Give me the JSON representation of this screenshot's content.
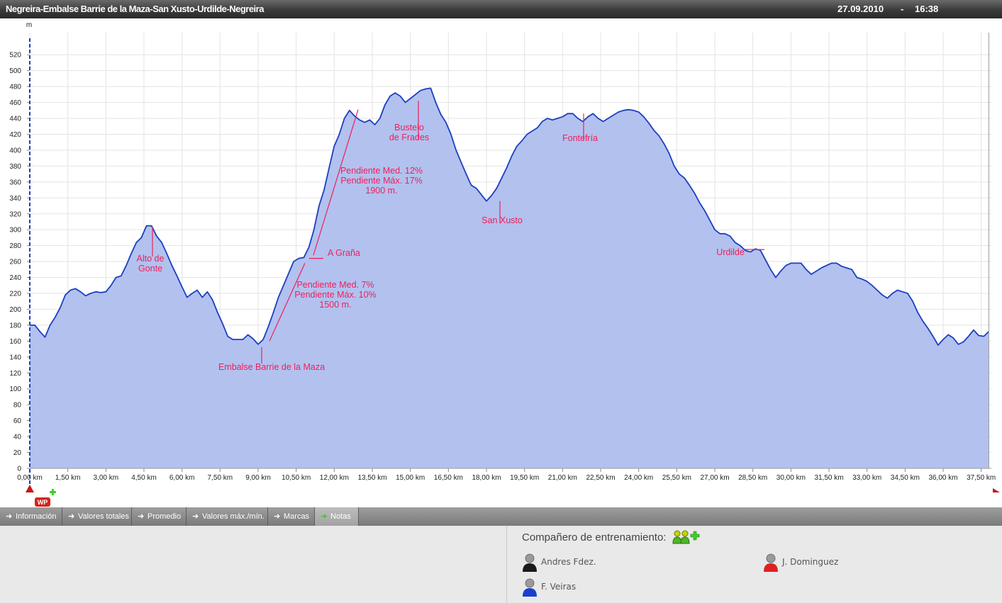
{
  "header": {
    "title": "Negreira-Embalse Barrie de la Maza-San Xusto-Urdilde-Negreira",
    "date": "27.09.2010",
    "separator": "-",
    "time": "16:38"
  },
  "chart_data": {
    "type": "area",
    "ylabel": "m",
    "xlabel": "",
    "xlim": [
      0,
      37.9
    ],
    "ylim": [
      0,
      530
    ],
    "yticks": [
      0,
      20,
      40,
      60,
      80,
      100,
      120,
      140,
      160,
      180,
      200,
      220,
      240,
      260,
      280,
      300,
      320,
      340,
      360,
      380,
      400,
      420,
      440,
      460,
      480,
      500,
      520
    ],
    "xticks": [
      0,
      1.5,
      3,
      4.5,
      6,
      7.5,
      9,
      10.5,
      12,
      13.5,
      15,
      16.5,
      18,
      19.5,
      21,
      22.5,
      24,
      25.5,
      27,
      28.5,
      30,
      31.5,
      33,
      34.5,
      36,
      37.5
    ],
    "xtick_labels": [
      "0,00 km",
      "1,50 km",
      "3,00 km",
      "4,50 km",
      "6,00 km",
      "7,50 km",
      "9,00 km",
      "10,50 km",
      "12,00 km",
      "13,50 km",
      "15,00 km",
      "16,50 km",
      "18,00 km",
      "19,50 km",
      "21,00 km",
      "22,50 km",
      "24,00 km",
      "25,50 km",
      "27,00 km",
      "28,50 km",
      "30,00 km",
      "31,50 km",
      "33,00 km",
      "34,50 km",
      "36,00 km",
      "37,50 km"
    ],
    "grid": true,
    "fill_color": "#b3c1ef",
    "line_color": "#1a3fc0",
    "series": [
      {
        "x": [
          0,
          0.2,
          0.4,
          0.6,
          0.8,
          1.0,
          1.2,
          1.4,
          1.6,
          1.8,
          2.0,
          2.2,
          2.4,
          2.6,
          2.8,
          3.0,
          3.2,
          3.4,
          3.6,
          3.8,
          4.0,
          4.2,
          4.4,
          4.6,
          4.8,
          5.0,
          5.2,
          5.4,
          5.6,
          5.8,
          6.0,
          6.2,
          6.4,
          6.6,
          6.8,
          7.0,
          7.2,
          7.4,
          7.6,
          7.8,
          8.0,
          8.2,
          8.4,
          8.6,
          8.8,
          9.0,
          9.2,
          9.4,
          9.6,
          9.8,
          10.0,
          10.2,
          10.4,
          10.6,
          10.8,
          11.0,
          11.2,
          11.4,
          11.6,
          11.8,
          12.0,
          12.2,
          12.4,
          12.6,
          12.8,
          13.0,
          13.2,
          13.4,
          13.6,
          13.8,
          14.0,
          14.2,
          14.4,
          14.6,
          14.8,
          15.0,
          15.2,
          15.4,
          15.6,
          15.8,
          16.0,
          16.2,
          16.4,
          16.6,
          16.8,
          17.0,
          17.2,
          17.4,
          17.6,
          17.8,
          18.0,
          18.2,
          18.4,
          18.6,
          18.8,
          19.0,
          19.2,
          19.4,
          19.6,
          19.8,
          20.0,
          20.2,
          20.4,
          20.6,
          20.8,
          21.0,
          21.2,
          21.4,
          21.6,
          21.8,
          22.0,
          22.2,
          22.4,
          22.6,
          22.8,
          23.0,
          23.2,
          23.4,
          23.6,
          23.8,
          24.0,
          24.2,
          24.4,
          24.6,
          24.8,
          25.0,
          25.2,
          25.4,
          25.6,
          25.8,
          26.0,
          26.2,
          26.4,
          26.6,
          26.8,
          27.0,
          27.2,
          27.4,
          27.6,
          27.8,
          28.0,
          28.2,
          28.4,
          28.6,
          28.8,
          29.0,
          29.2,
          29.4,
          29.6,
          29.8,
          30.0,
          30.2,
          30.4,
          30.6,
          30.8,
          31.0,
          31.2,
          31.4,
          31.6,
          31.8,
          32.0,
          32.2,
          32.4,
          32.6,
          32.8,
          33.0,
          33.2,
          33.4,
          33.6,
          33.8,
          34.0,
          34.2,
          34.4,
          34.6,
          34.8,
          35.0,
          35.2,
          35.4,
          35.6,
          35.8,
          36.0,
          36.2,
          36.4,
          36.6,
          36.8,
          37.0,
          37.2,
          37.4,
          37.6,
          37.8
        ],
        "y": [
          180,
          180,
          172,
          165,
          180,
          190,
          202,
          218,
          224,
          226,
          222,
          217,
          220,
          222,
          221,
          222,
          230,
          240,
          242,
          255,
          270,
          284,
          290,
          305,
          305,
          292,
          284,
          270,
          255,
          242,
          228,
          215,
          220,
          224,
          215,
          222,
          212,
          196,
          182,
          166,
          162,
          162,
          162,
          168,
          163,
          156,
          162,
          178,
          196,
          215,
          230,
          245,
          260,
          264,
          265,
          278,
          300,
          330,
          350,
          378,
          405,
          420,
          440,
          450,
          443,
          438,
          435,
          438,
          432,
          440,
          457,
          468,
          472,
          468,
          460,
          465,
          470,
          475,
          477,
          478,
          460,
          445,
          435,
          420,
          400,
          385,
          370,
          356,
          352,
          344,
          336,
          343,
          352,
          365,
          378,
          393,
          405,
          412,
          420,
          424,
          428,
          436,
          440,
          438,
          440,
          442,
          446,
          446,
          440,
          436,
          442,
          446,
          440,
          436,
          440,
          444,
          448,
          450,
          451,
          450,
          448,
          442,
          434,
          425,
          418,
          408,
          396,
          380,
          370,
          365,
          356,
          346,
          334,
          324,
          312,
          300,
          295,
          295,
          292,
          284,
          280,
          274,
          272,
          276,
          274,
          262,
          250,
          240,
          248,
          255,
          258,
          258,
          258,
          250,
          244,
          248,
          252,
          255,
          258,
          258,
          254,
          252,
          250,
          240,
          238,
          235,
          230,
          224,
          218,
          214,
          220,
          224,
          222,
          220,
          210,
          196,
          185,
          176,
          166,
          155,
          162,
          168,
          164,
          156,
          159,
          166,
          174,
          167,
          166,
          172
        ]
      }
    ],
    "annotations": [
      {
        "text": "Alto de\nGonte",
        "x": 4.9,
        "y": 305
      },
      {
        "text": "Embalse Barrie de la Maza",
        "x": 9.2,
        "y": 156
      },
      {
        "text": "Pendiente Med. 7%\nPendiente Máx. 10%\n1500 m.",
        "x": 11.0,
        "y": 258
      },
      {
        "text": "A Graña",
        "x": 11.0,
        "y": 264
      },
      {
        "text": "Pendiente Med. 12%\nPendiente Máx. 17%\n1900 m.",
        "x": 12.9,
        "y": 450
      },
      {
        "text": "Bustelo\nde Frades",
        "x": 15.3,
        "y": 458
      },
      {
        "text": "San Xusto",
        "x": 18.5,
        "y": 336
      },
      {
        "text": "Fontefría",
        "x": 21.95,
        "y": 446
      },
      {
        "text": "Urdilde",
        "x": 29.0,
        "y": 275
      }
    ]
  },
  "tabs": [
    {
      "label": "Información",
      "active": false
    },
    {
      "label": "Valores totales",
      "active": false
    },
    {
      "label": "Promedio",
      "active": false
    },
    {
      "label": "Valores máx./mín.",
      "active": false
    },
    {
      "label": "Marcas",
      "active": false
    },
    {
      "label": "Notas",
      "active": true
    }
  ],
  "partners": {
    "title": "Compañero de entrenamiento:",
    "items": [
      {
        "name": "Andres Fdez.",
        "color": "#1a1a1a"
      },
      {
        "name": "J. Dominguez",
        "color": "#e02020"
      },
      {
        "name": "F. Veiras",
        "color": "#1a3fd0"
      }
    ]
  },
  "waypoint_badge": "WP"
}
